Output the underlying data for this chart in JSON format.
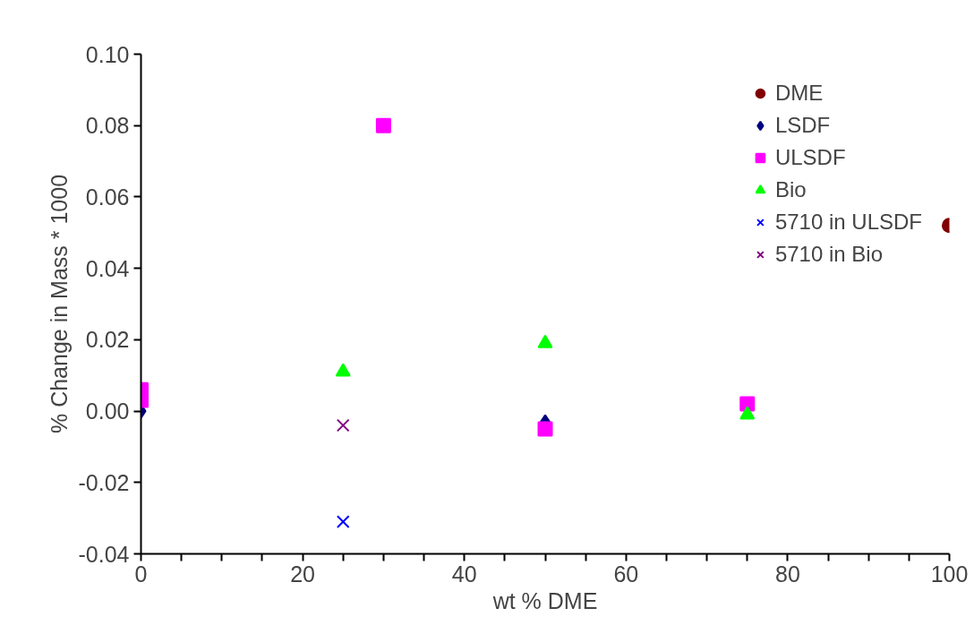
{
  "chart_data": {
    "type": "scatter",
    "xlabel": "wt % DME",
    "ylabel": "% Change in Mass * 1000",
    "xlim": [
      0,
      100
    ],
    "ylim": [
      -0.04,
      0.1
    ],
    "xticks": [
      0,
      {
        "value": 5,
        "label": null
      },
      {
        "value": 10,
        "label": null
      },
      {
        "value": 15,
        "label": null
      },
      20,
      {
        "value": 25,
        "label": null
      },
      {
        "value": 30,
        "label": null
      },
      {
        "value": 35,
        "label": null
      },
      40,
      {
        "value": 45,
        "label": null
      },
      {
        "value": 50,
        "label": null
      },
      {
        "value": 55,
        "label": null
      },
      60,
      {
        "value": 65,
        "label": null
      },
      {
        "value": 70,
        "label": null
      },
      {
        "value": 75,
        "label": null
      },
      80,
      {
        "value": 85,
        "label": null
      },
      {
        "value": 90,
        "label": null
      },
      {
        "value": 95,
        "label": null
      },
      100
    ],
    "yticks": [
      {
        "value": -0.04,
        "label": "-0.04"
      },
      {
        "value": -0.02,
        "label": "-0.02"
      },
      {
        "value": 0,
        "label": "0.00"
      },
      {
        "value": 0.02,
        "label": "0.02"
      },
      {
        "value": 0.04,
        "label": "0.04"
      },
      {
        "value": 0.06,
        "label": "0.06"
      },
      {
        "value": 0.08,
        "label": "0.08"
      },
      {
        "value": 0.1,
        "label": "0.10"
      }
    ],
    "grid": false,
    "legend": "top right",
    "series": [
      {
        "name": "DME",
        "color": "#800000",
        "marker": "circle",
        "x": [
          100
        ],
        "values": [
          0.052
        ]
      },
      {
        "name": "LSDF",
        "color": "#000080",
        "marker": "diamond",
        "x": [
          0,
          50
        ],
        "values": [
          0.0,
          -0.003
        ]
      },
      {
        "name": "ULSDF",
        "color": "#ff00ff",
        "marker": "square",
        "x": [
          0,
          0,
          30,
          50,
          75
        ],
        "values": [
          0.006,
          0.003,
          0.08,
          -0.005,
          0.002
        ]
      },
      {
        "name": "Bio",
        "color": "#00ff00",
        "marker": "triangle",
        "x": [
          25,
          50,
          75
        ],
        "values": [
          0.011,
          0.019,
          -0.001
        ]
      },
      {
        "name": "5710 in ULSDF",
        "color": "#0000ff",
        "marker": "cross",
        "x": [
          25
        ],
        "values": [
          -0.031
        ]
      },
      {
        "name": "5710 in Bio",
        "color": "#800080",
        "marker": "cross",
        "x": [
          25
        ],
        "values": [
          -0.004
        ]
      }
    ]
  }
}
